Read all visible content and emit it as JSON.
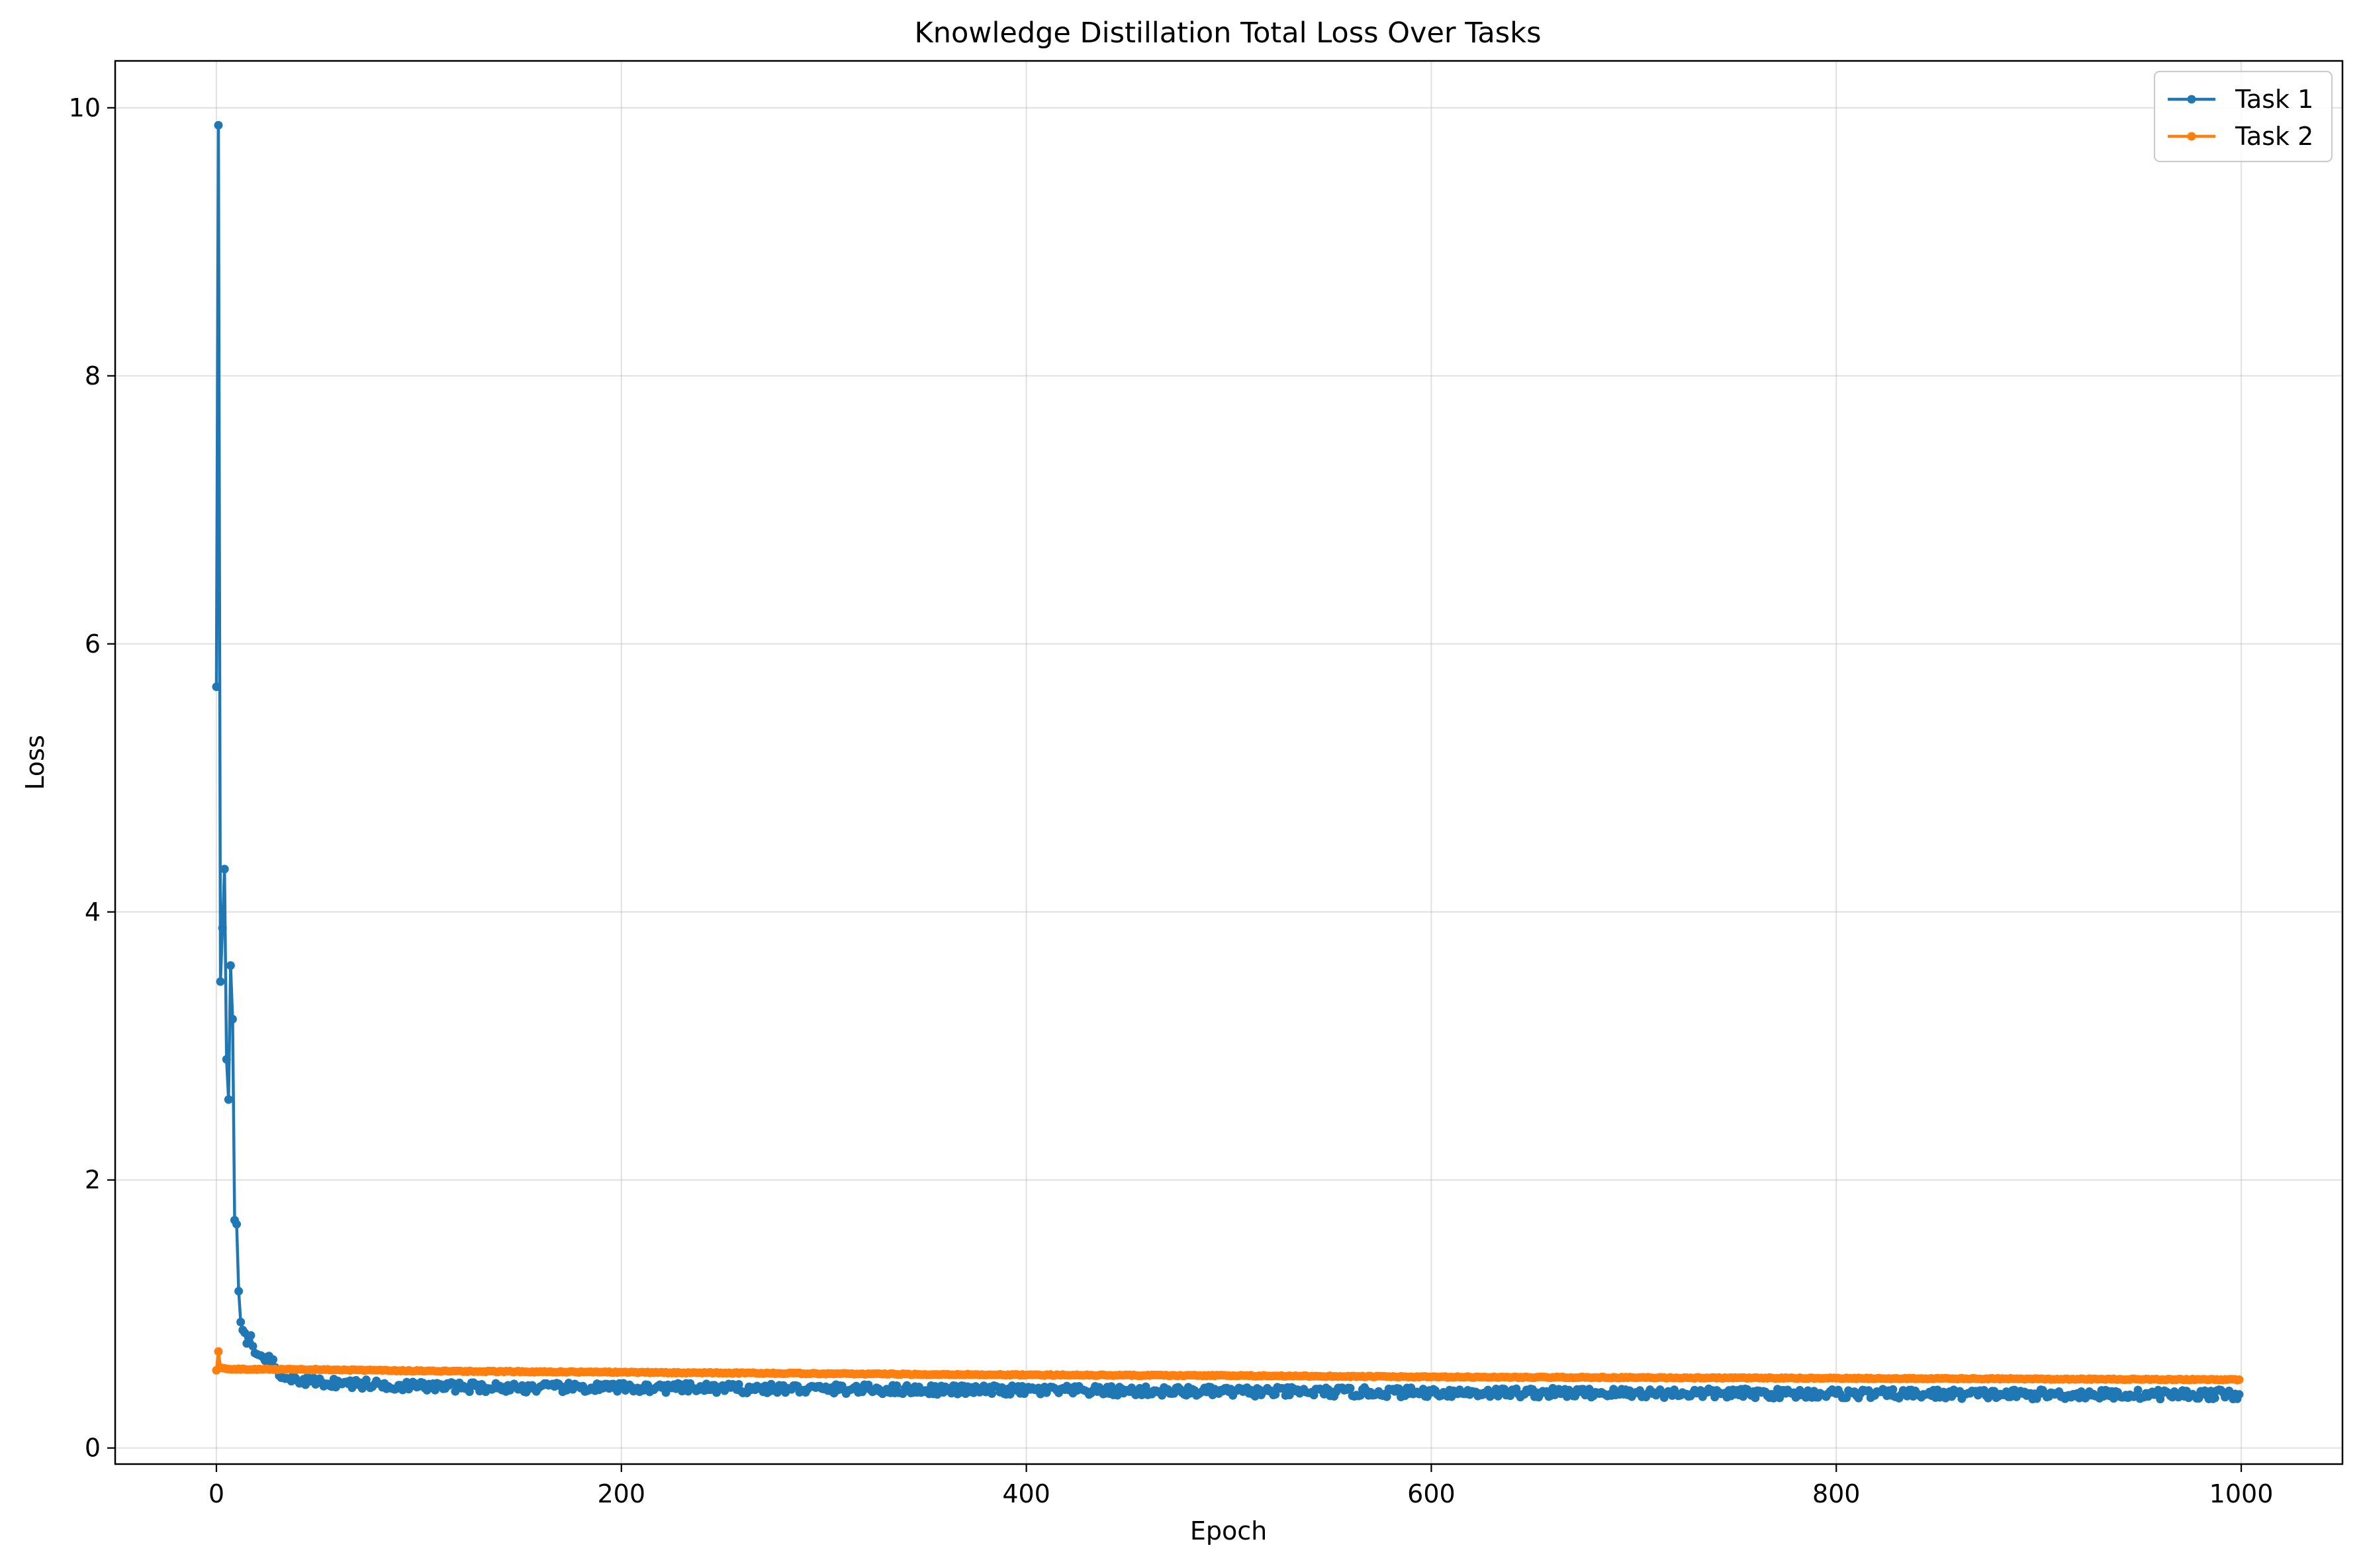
{
  "chart_data": {
    "type": "line",
    "title": "Knowledge Distillation Total Loss Over Tasks",
    "xlabel": "Epoch",
    "ylabel": "Loss",
    "xlim": [
      -50,
      1050
    ],
    "ylim": [
      -0.12,
      10.35
    ],
    "xticks": [
      0,
      200,
      400,
      600,
      800,
      1000
    ],
    "yticks": [
      0,
      2,
      4,
      6,
      8,
      10
    ],
    "grid": true,
    "legend_position": "top-right",
    "series": [
      {
        "name": "Task 1",
        "color": "#1f77b4",
        "marker": "circle",
        "keypoints": [
          [
            0,
            5.68
          ],
          [
            1,
            9.87
          ],
          [
            2,
            3.48
          ],
          [
            3,
            3.88
          ],
          [
            4,
            4.32
          ],
          [
            5,
            2.9
          ],
          [
            6,
            2.6
          ],
          [
            7,
            3.6
          ],
          [
            8,
            3.2
          ],
          [
            9,
            1.7
          ],
          [
            10,
            1.67
          ],
          [
            11,
            1.17
          ],
          [
            12,
            0.94
          ],
          [
            13,
            0.88
          ],
          [
            14,
            0.86
          ],
          [
            15,
            0.78
          ],
          [
            16,
            0.82
          ],
          [
            17,
            0.84
          ],
          [
            18,
            0.76
          ],
          [
            20,
            0.7
          ],
          [
            22,
            0.69
          ],
          [
            25,
            0.68
          ],
          [
            28,
            0.66
          ],
          [
            30,
            0.58
          ],
          [
            35,
            0.52
          ],
          [
            50,
            0.49
          ],
          [
            100,
            0.46
          ],
          [
            150,
            0.45
          ],
          [
            200,
            0.45
          ],
          [
            300,
            0.44
          ],
          [
            400,
            0.43
          ],
          [
            500,
            0.42
          ],
          [
            600,
            0.415
          ],
          [
            700,
            0.41
          ],
          [
            800,
            0.405
          ],
          [
            900,
            0.4
          ],
          [
            999,
            0.4
          ]
        ],
        "noise_amplitude": 0.035
      },
      {
        "name": "Task 2",
        "color": "#ff7f0e",
        "marker": "circle",
        "keypoints": [
          [
            0,
            0.58
          ],
          [
            1,
            0.72
          ],
          [
            2,
            0.6
          ],
          [
            5,
            0.59
          ],
          [
            50,
            0.585
          ],
          [
            100,
            0.575
          ],
          [
            200,
            0.565
          ],
          [
            300,
            0.555
          ],
          [
            400,
            0.545
          ],
          [
            500,
            0.54
          ],
          [
            600,
            0.53
          ],
          [
            700,
            0.525
          ],
          [
            800,
            0.52
          ],
          [
            900,
            0.515
          ],
          [
            999,
            0.51
          ]
        ],
        "noise_amplitude": 0.004
      }
    ]
  }
}
